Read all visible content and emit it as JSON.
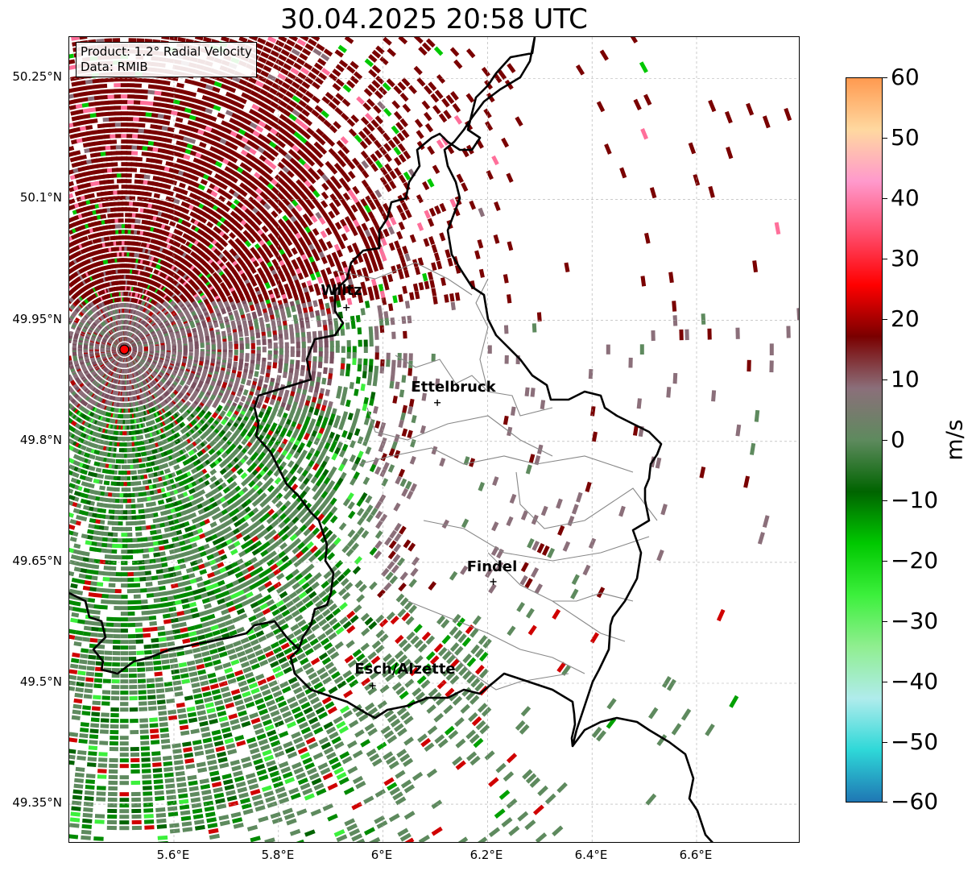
{
  "title": "30.04.2025 20:58 UTC",
  "info": {
    "product": "Product: 1.2° Radial Velocity",
    "data_source": "Data: RMIB"
  },
  "lat_labels": [
    "50.25°N",
    "50.1°N",
    "49.95°N",
    "49.8°N",
    "49.65°N",
    "49.5°N",
    "49.35°N"
  ],
  "lon_labels": [
    "5.6°E",
    "5.8°E",
    "6°E",
    "6.2°E",
    "6.4°E",
    "6.6°E"
  ],
  "cities": [
    {
      "name": "Wiltz",
      "lon": 5.93,
      "lat": 49.966
    },
    {
      "name": "Ettelbruck",
      "lon": 6.104,
      "lat": 49.848
    },
    {
      "name": "Findel",
      "lon": 6.211,
      "lat": 49.626
    },
    {
      "name": "Esch/Alzette",
      "lon": 5.98,
      "lat": 49.497
    }
  ],
  "radar_site": {
    "lon": 5.505,
    "lat": 49.914
  },
  "colorbar": {
    "unit": "m/s",
    "ticks": [
      "60",
      "50",
      "40",
      "30",
      "20",
      "10",
      "0",
      "−10",
      "−20",
      "−30",
      "−40",
      "−50",
      "−60"
    ],
    "range": [
      -60,
      60
    ],
    "stops": [
      "#1f77b4",
      "#2ed8d8",
      "#b0ecec",
      "#90ee90",
      "#3cf03c",
      "#00c800",
      "#006400",
      "#5e8a5e",
      "#8b6f7a",
      "#7a0000",
      "#ff0000",
      "#ff4d6d",
      "#ff99cc",
      "#ffd8a0",
      "#ff9a50"
    ]
  },
  "colors": {
    "outbound_strong": "#7a0000",
    "outbound_weak": "#8b6f7a",
    "inbound_weak": "#5e8a5e",
    "inbound_strong": "#00a000",
    "border": "#000000",
    "canton_border": "#888888"
  }
}
